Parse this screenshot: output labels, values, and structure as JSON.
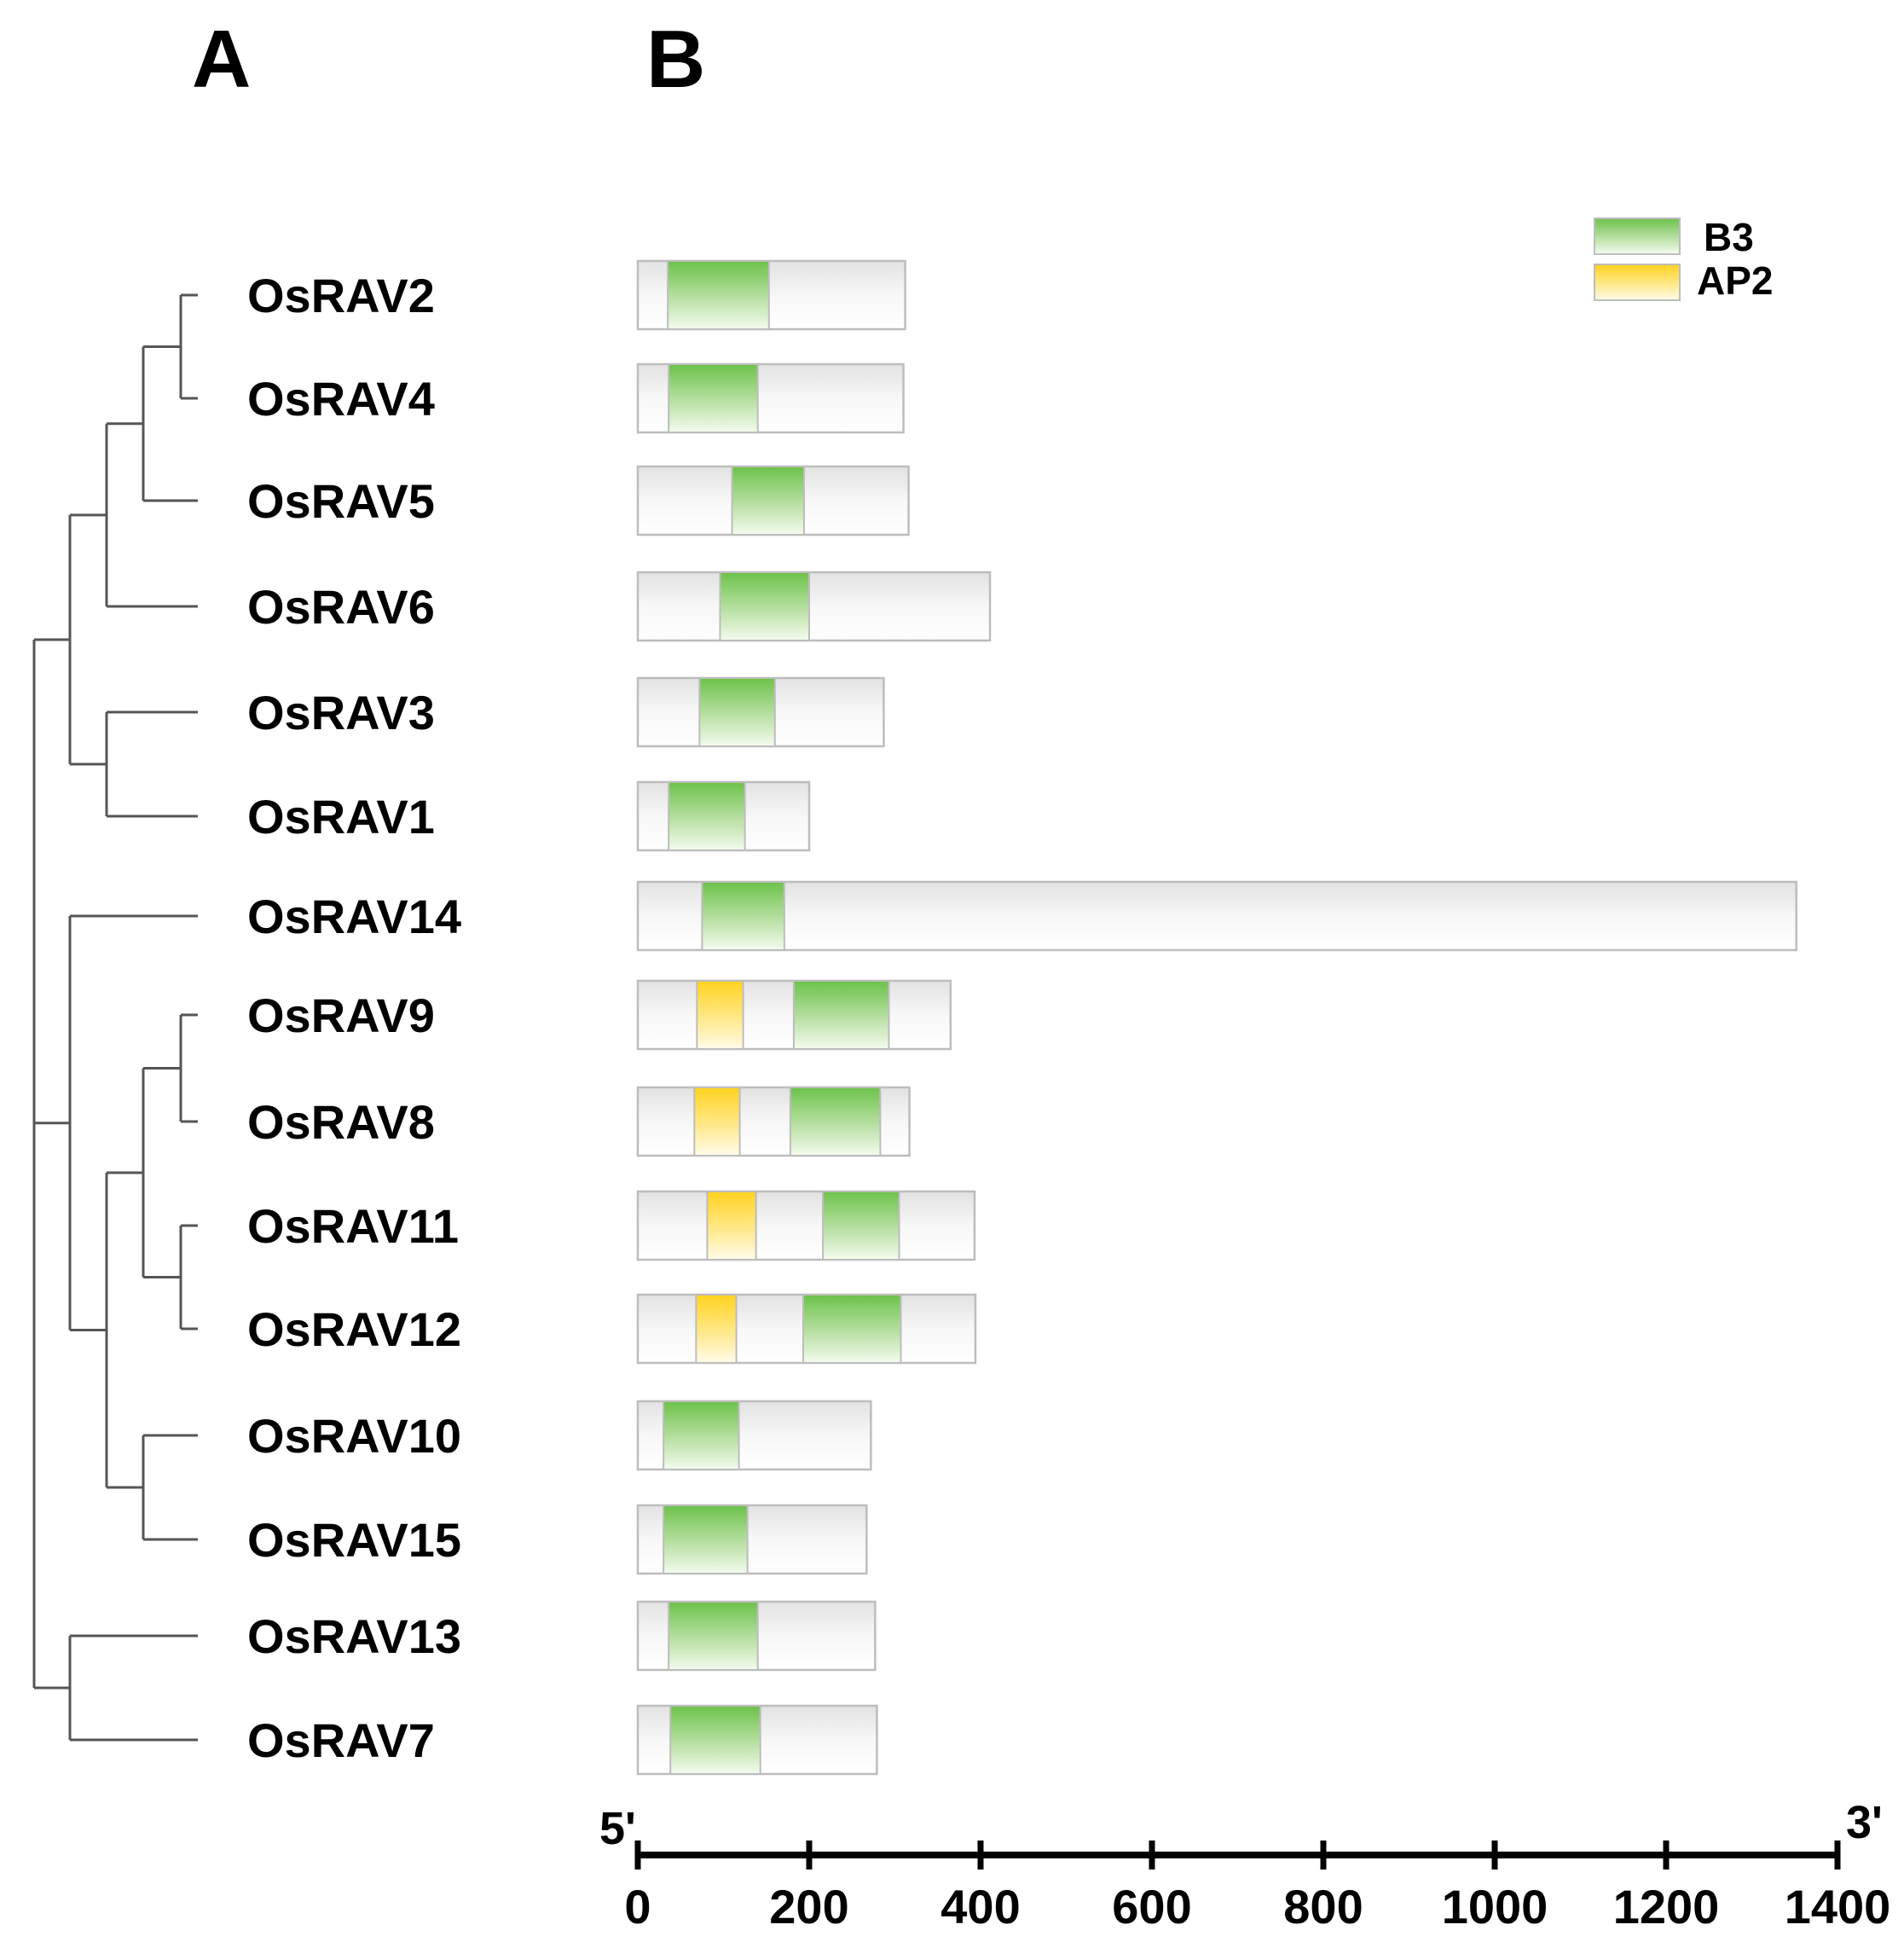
{
  "panels": {
    "a_label": "A",
    "b_label": "B"
  },
  "legend": [
    {
      "key": "b3",
      "label": "B3",
      "color": "#6cc24a"
    },
    {
      "key": "ap2",
      "label": "AP2",
      "color": "#ffd21f"
    }
  ],
  "axis": {
    "start_label": "5'",
    "end_label": "3'",
    "min": 0,
    "max": 1400,
    "ticks": [
      0,
      200,
      400,
      600,
      800,
      1000,
      1200,
      1400
    ]
  },
  "genes": [
    {
      "name": "OsRAV2",
      "length": 312,
      "domains": [
        {
          "type": "b3",
          "start": 35,
          "end": 153
        }
      ]
    },
    {
      "name": "OsRAV4",
      "length": 310,
      "domains": [
        {
          "type": "b3",
          "start": 36,
          "end": 140
        }
      ]
    },
    {
      "name": "OsRAV5",
      "length": 316,
      "domains": [
        {
          "type": "b3",
          "start": 110,
          "end": 194
        }
      ]
    },
    {
      "name": "OsRAV6",
      "length": 411,
      "domains": [
        {
          "type": "b3",
          "start": 96,
          "end": 200
        }
      ]
    },
    {
      "name": "OsRAV3",
      "length": 287,
      "domains": [
        {
          "type": "b3",
          "start": 72,
          "end": 160
        }
      ]
    },
    {
      "name": "OsRAV1",
      "length": 200,
      "domains": [
        {
          "type": "b3",
          "start": 36,
          "end": 125
        }
      ]
    },
    {
      "name": "OsRAV14",
      "length": 1352,
      "domains": [
        {
          "type": "b3",
          "start": 75,
          "end": 171
        }
      ]
    },
    {
      "name": "OsRAV9",
      "length": 365,
      "domains": [
        {
          "type": "ap2",
          "start": 69,
          "end": 123
        },
        {
          "type": "b3",
          "start": 182,
          "end": 293
        }
      ]
    },
    {
      "name": "OsRAV8",
      "length": 317,
      "domains": [
        {
          "type": "ap2",
          "start": 66,
          "end": 119
        },
        {
          "type": "b3",
          "start": 178,
          "end": 283
        }
      ]
    },
    {
      "name": "OsRAV11",
      "length": 393,
      "domains": [
        {
          "type": "ap2",
          "start": 81,
          "end": 138
        },
        {
          "type": "b3",
          "start": 216,
          "end": 305
        }
      ]
    },
    {
      "name": "OsRAV12",
      "length": 394,
      "domains": [
        {
          "type": "ap2",
          "start": 68,
          "end": 115
        },
        {
          "type": "b3",
          "start": 193,
          "end": 307
        }
      ]
    },
    {
      "name": "OsRAV10",
      "length": 272,
      "domains": [
        {
          "type": "b3",
          "start": 30,
          "end": 118
        }
      ]
    },
    {
      "name": "OsRAV15",
      "length": 267,
      "domains": [
        {
          "type": "b3",
          "start": 30,
          "end": 128
        }
      ]
    },
    {
      "name": "OsRAV13",
      "length": 277,
      "domains": [
        {
          "type": "b3",
          "start": 36,
          "end": 140
        }
      ]
    },
    {
      "name": "OsRAV7",
      "length": 279,
      "domains": [
        {
          "type": "b3",
          "start": 38,
          "end": 143
        }
      ]
    }
  ],
  "tree": {
    "name": "root",
    "children": [
      {
        "name": "n1",
        "children": [
          {
            "name": "n2",
            "children": [
              {
                "name": "n3",
                "children": [
                  {
                    "name": "n4",
                    "children": [
                      {
                        "leaf": 0
                      },
                      {
                        "leaf": 1
                      }
                    ]
                  },
                  {
                    "leaf": 2
                  }
                ]
              },
              {
                "leaf": 3
              }
            ]
          },
          {
            "name": "n5",
            "children": [
              {
                "leaf": 4
              },
              {
                "leaf": 5
              }
            ]
          }
        ]
      },
      {
        "name": "n6",
        "children": [
          {
            "leaf": 6
          },
          {
            "name": "n7",
            "children": [
              {
                "name": "n8",
                "children": [
                  {
                    "name": "n9",
                    "children": [
                      {
                        "leaf": 7
                      },
                      {
                        "leaf": 8
                      }
                    ]
                  },
                  {
                    "name": "n10",
                    "children": [
                      {
                        "leaf": 9
                      },
                      {
                        "leaf": 10
                      }
                    ]
                  }
                ]
              },
              {
                "name": "n11",
                "children": [
                  {
                    "leaf": 11
                  },
                  {
                    "leaf": 12
                  }
                ]
              }
            ]
          }
        ]
      },
      {
        "name": "n12",
        "children": [
          {
            "leaf": 13
          },
          {
            "leaf": 14
          }
        ]
      }
    ]
  }
}
